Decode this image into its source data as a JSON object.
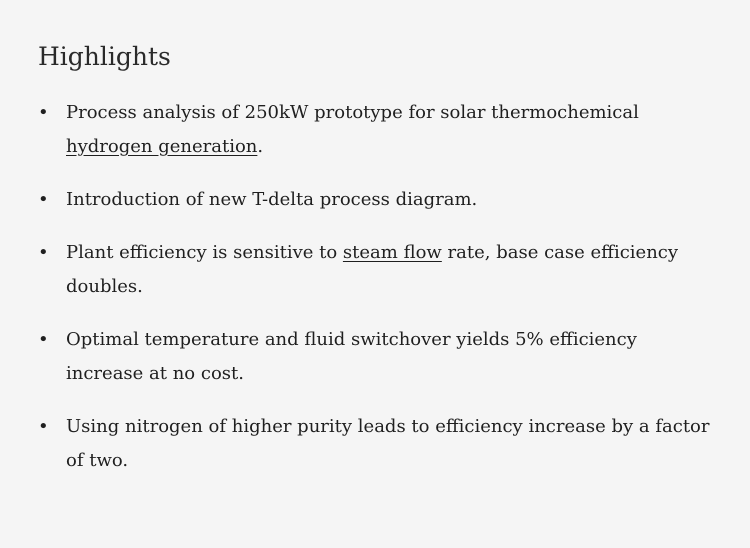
{
  "title": "Highlights",
  "items": [
    {
      "parts": [
        "Process analysis of 250kW prototype for solar thermochemical ",
        {
          "link": "hydrogen generation"
        },
        "."
      ]
    },
    {
      "parts": [
        "Introduction of new T-delta process diagram."
      ]
    },
    {
      "parts": [
        "Plant efficiency is sensitive to ",
        {
          "link": "steam flow"
        },
        " rate, base case efficiency doubles."
      ]
    },
    {
      "parts": [
        "Optimal temperature and fluid switchover yields 5% efficiency increase at no cost."
      ]
    },
    {
      "parts": [
        "Using nitrogen of higher purity leads to efficiency increase by a factor of two."
      ]
    }
  ]
}
